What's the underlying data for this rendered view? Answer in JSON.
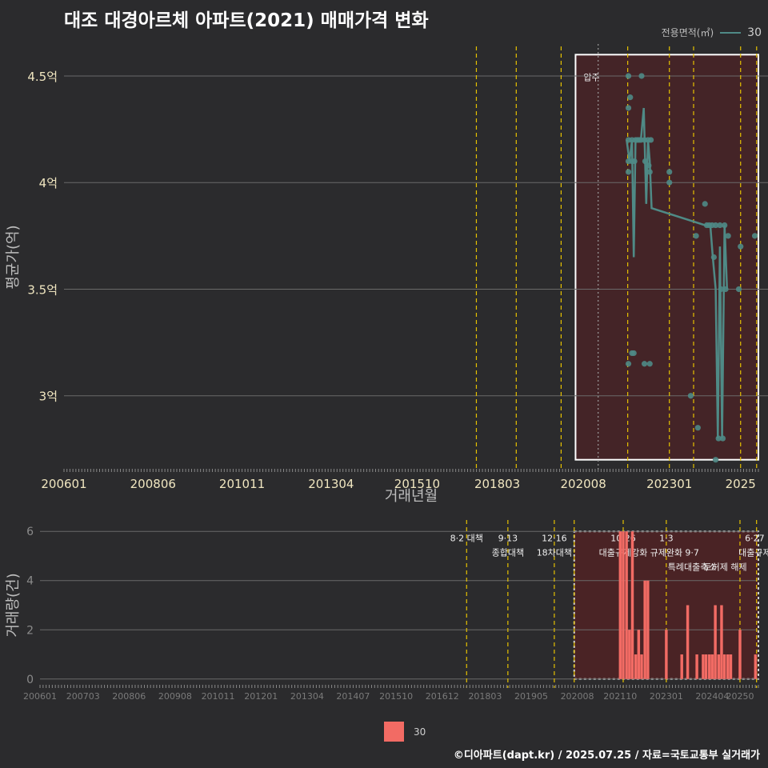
{
  "title": "대조 대경아르체 아파트(2021) 매매가격 변화",
  "legend": {
    "title": "전용면적(㎡)",
    "value": "30"
  },
  "footer": "©디아파트(dapt.kr) / 2025.07.25 / 자료=국토교통부 실거래가",
  "colors": {
    "line": "#4f8a86",
    "bar": "#f26b64",
    "policy": "#e6c200",
    "highlight": "#5a1f22"
  },
  "chart_data": [
    {
      "type": "line",
      "title": "대조 대경아르체 아파트(2021) 매매가격 변화",
      "xlabel": "거래년월",
      "ylabel": "평균가(억)",
      "x_range": [
        2006.0,
        2025.5
      ],
      "ylim": [
        2.65,
        4.65
      ],
      "y_ticks": [
        3,
        3.5,
        4,
        4.5
      ],
      "y_tick_labels": [
        "3억",
        "3.5억",
        "4억",
        "4.5억"
      ],
      "x_tick_values": [
        2006.0,
        2008.5,
        2011.0,
        2013.5,
        2015.917,
        2018.167,
        2020.583,
        2023.0,
        2025.0
      ],
      "x_tick_labels": [
        "200601",
        "200806",
        "201011",
        "201304",
        "201510",
        "201803",
        "202008",
        "202301",
        "2025"
      ],
      "policy_lines": [
        2017.58,
        2018.7,
        2019.96,
        2021.83,
        2023.0,
        2023.68,
        2025.0,
        2025.45
      ],
      "gray_line": 2021.0,
      "highlight": {
        "x_start": 2020.5,
        "x_end": 2025.5,
        "label": "압주"
      },
      "series": [
        {
          "name": "30",
          "line": [
            [
              2021.8,
              4.2
            ],
            [
              2021.88,
              4.1
            ],
            [
              2021.95,
              4.2
            ],
            [
              2022.0,
              3.65
            ],
            [
              2022.05,
              4.2
            ],
            [
              2022.12,
              4.2
            ],
            [
              2022.2,
              4.2
            ],
            [
              2022.28,
              4.35
            ],
            [
              2022.35,
              3.9
            ],
            [
              2022.4,
              4.2
            ],
            [
              2022.45,
              4.1
            ],
            [
              2022.5,
              3.88
            ],
            [
              2024.0,
              3.8
            ],
            [
              2024.08,
              3.8
            ],
            [
              2024.15,
              3.8
            ],
            [
              2024.22,
              3.65
            ],
            [
              2024.3,
              3.5
            ],
            [
              2024.36,
              2.8
            ],
            [
              2024.42,
              3.7
            ],
            [
              2024.48,
              2.8
            ],
            [
              2024.55,
              3.8
            ],
            [
              2024.62,
              3.5
            ]
          ],
          "points": [
            [
              2021.85,
              4.5
            ],
            [
              2021.85,
              4.35
            ],
            [
              2021.9,
              4.4
            ],
            [
              2021.85,
              4.2
            ],
            [
              2021.85,
              4.1
            ],
            [
              2021.85,
              4.05
            ],
            [
              2021.95,
              4.1
            ],
            [
              2021.95,
              4.2
            ],
            [
              2022.02,
              4.1
            ],
            [
              2022.05,
              4.2
            ],
            [
              2022.1,
              4.2
            ],
            [
              2022.15,
              4.2
            ],
            [
              2022.2,
              4.2
            ],
            [
              2022.22,
              4.5
            ],
            [
              2022.3,
              4.2
            ],
            [
              2022.32,
              4.1
            ],
            [
              2022.4,
              4.2
            ],
            [
              2022.42,
              4.08
            ],
            [
              2022.45,
              4.05
            ],
            [
              2022.48,
              4.2
            ],
            [
              2021.85,
              3.15
            ],
            [
              2021.95,
              3.2
            ],
            [
              2022.0,
              3.2
            ],
            [
              2022.3,
              3.15
            ],
            [
              2022.45,
              3.15
            ],
            [
              2023.0,
              4.05
            ],
            [
              2023.0,
              4.0
            ],
            [
              2023.6,
              3.0
            ],
            [
              2023.75,
              3.75
            ],
            [
              2023.8,
              2.85
            ],
            [
              2024.0,
              3.9
            ],
            [
              2024.05,
              3.8
            ],
            [
              2024.12,
              3.8
            ],
            [
              2024.2,
              3.8
            ],
            [
              2024.25,
              3.65
            ],
            [
              2024.3,
              3.8
            ],
            [
              2024.38,
              2.8
            ],
            [
              2024.42,
              3.8
            ],
            [
              2024.45,
              3.5
            ],
            [
              2024.5,
              2.8
            ],
            [
              2024.55,
              3.8
            ],
            [
              2024.58,
              3.5
            ],
            [
              2024.65,
              3.75
            ],
            [
              2024.3,
              2.7
            ],
            [
              2024.95,
              3.5
            ],
            [
              2025.0,
              3.7
            ],
            [
              2025.4,
              3.75
            ]
          ]
        }
      ]
    },
    {
      "type": "bar",
      "xlabel": "",
      "ylabel": "거래량(건)",
      "x_range": [
        2006.0,
        2025.5
      ],
      "ylim": [
        -0.3,
        6.3
      ],
      "y_ticks": [
        0,
        2,
        4,
        6
      ],
      "y_tick_labels": [
        "0",
        "2",
        "4",
        "6"
      ],
      "x_tick_values": [
        2006.0,
        2007.167,
        2008.417,
        2009.667,
        2010.833,
        2012.0,
        2013.25,
        2014.5,
        2015.667,
        2016.917,
        2018.083,
        2019.333,
        2020.583,
        2021.75,
        2023.0,
        2024.25,
        2025.0
      ],
      "x_tick_labels": [
        "200601",
        "200703",
        "200806",
        "200908",
        "201011",
        "201201",
        "201304",
        "201407",
        "201510",
        "201612",
        "201803",
        "201905",
        "202008",
        "202110",
        "202301",
        "202404",
        "20250"
      ],
      "policy_lines": [
        2017.58,
        2018.7,
        2019.96,
        2020.5,
        2021.83,
        2023.0,
        2025.0,
        2025.45
      ],
      "policy_labels": [
        {
          "x": 2017.58,
          "line1": "8·2 대책",
          "line2": ""
        },
        {
          "x": 2018.7,
          "line1": "9·13",
          "line2": "종합대책"
        },
        {
          "x": 2019.96,
          "line1": "12·16",
          "line2": "18차대책"
        },
        {
          "x": 2021.83,
          "line1": "10·26",
          "line2": "대출규제강화"
        },
        {
          "x": 2023.0,
          "line1": "1·3",
          "line2": "규제완화"
        },
        {
          "x": 2023.7,
          "line1": "9·7",
          "line2": "특례대출축소"
        },
        {
          "x": 2024.6,
          "line1": "",
          "line2": "토허제 해제"
        },
        {
          "x": 2025.4,
          "line1": "6·27",
          "line2": "대출규제"
        }
      ],
      "highlight": {
        "x_start": 2020.5,
        "x_end": 2025.5
      },
      "series": [
        {
          "name": "30",
          "x": [
            2021.75,
            2021.83,
            2021.92,
            2022.0,
            2022.08,
            2022.17,
            2022.25,
            2022.33,
            2022.42,
            2022.5,
            2023.0,
            2023.42,
            2023.58,
            2023.83,
            2024.0,
            2024.08,
            2024.17,
            2024.25,
            2024.33,
            2024.42,
            2024.5,
            2024.58,
            2024.67,
            2024.75,
            2025.0,
            2025.42
          ],
          "values": [
            6,
            6,
            6,
            2,
            6,
            1,
            2,
            1,
            4,
            4,
            2,
            1,
            3,
            1,
            1,
            1,
            1,
            1,
            3,
            1,
            3,
            1,
            1,
            1,
            2,
            1
          ]
        }
      ]
    }
  ]
}
